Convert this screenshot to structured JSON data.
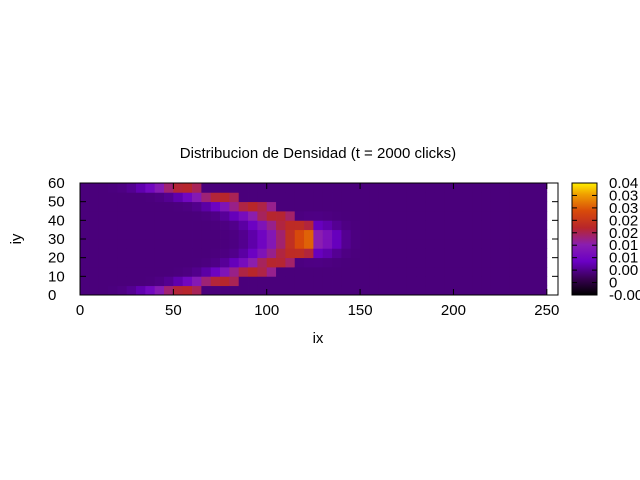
{
  "chart_data": {
    "type": "heatmap",
    "title": "Distribucion de Densidad (t = 2000 clicks)",
    "xlabel": "ix",
    "ylabel": "iy",
    "xlim": [
      0,
      256
    ],
    "ylim": [
      0,
      60
    ],
    "x_ticks": [
      "0",
      "50",
      "100",
      "150",
      "200",
      "250"
    ],
    "y_ticks": [
      "0",
      "10",
      "20",
      "30",
      "40",
      "50",
      "60"
    ],
    "x_tick_values": [
      0,
      50,
      100,
      150,
      200,
      250
    ],
    "y_tick_values": [
      0,
      10,
      20,
      30,
      40,
      50,
      60
    ],
    "colorbar": {
      "range": [
        -0.005,
        0.04
      ],
      "tick_labels": [
        "-0.00",
        "0",
        "0.00",
        "0.01",
        "0.01",
        "0.02",
        "0.02",
        "0.03",
        "0.03",
        "0.04"
      ],
      "tick_values": [
        -0.005,
        0,
        0.005,
        0.01,
        0.015,
        0.02,
        0.025,
        0.03,
        0.035,
        0.04
      ],
      "palette": "gnuplot-hot (black-purple-red-yellow)"
    },
    "density_field": {
      "description_shape": "parabolic density front opening toward small ix",
      "front_vertex_ix": 128,
      "front_vertex_iy": 30,
      "front_end_ix": 55,
      "front_thickness_ix": 18,
      "background_value": 0.004,
      "front_peak_value": 0.022,
      "hotspot_value": 0.035,
      "hotspot_ix": 126,
      "hotspot_iy": 30,
      "cell_size": 5,
      "grid_ix_range": [
        0,
        250
      ],
      "grid_iy_range": [
        0,
        60
      ]
    },
    "grid": false,
    "legend": "none"
  }
}
